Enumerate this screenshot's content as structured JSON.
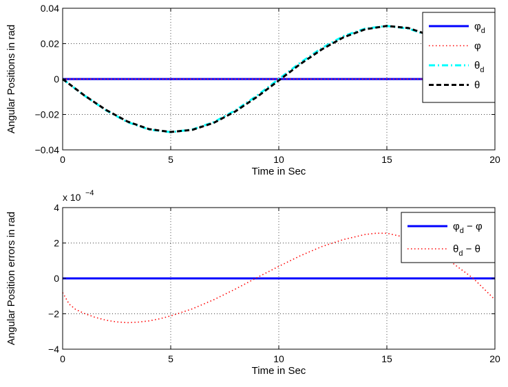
{
  "chart_data": [
    {
      "type": "line",
      "xlabel": "Time in Sec",
      "ylabel": "Angular Positions in rad",
      "xlim": [
        0,
        20
      ],
      "ylim": [
        -0.04,
        0.04
      ],
      "xticks": [
        0,
        5,
        10,
        15,
        20
      ],
      "yticks": [
        -0.04,
        -0.02,
        0,
        0.02,
        0.04
      ],
      "xtick_labels": [
        "0",
        "5",
        "10",
        "15",
        "20"
      ],
      "ytick_labels": [
        "−0.04",
        "−0.02",
        "0",
        "0.02",
        "0.04"
      ],
      "grid": true,
      "legend_position": "top-right",
      "series": [
        {
          "name": "φd",
          "legend_main": "φ",
          "legend_sub": "d",
          "color": "#0000ff",
          "style": "solid",
          "x": [
            0,
            20
          ],
          "y": [
            0,
            0
          ]
        },
        {
          "name": "φ",
          "legend_main": "φ",
          "legend_sub": "",
          "color": "#ff0000",
          "style": "dotted",
          "x": [
            0,
            20
          ],
          "y": [
            0,
            0
          ]
        },
        {
          "name": "θd",
          "legend_main": "θ",
          "legend_sub": "d",
          "color": "#00ffff",
          "style": "dashdot",
          "x": [
            0,
            1,
            2,
            3,
            4,
            5,
            6,
            7,
            8,
            9,
            10,
            11,
            12,
            13,
            14,
            15,
            16,
            17,
            18,
            19,
            20
          ],
          "y": [
            0,
            -0.0093,
            -0.0176,
            -0.0243,
            -0.0285,
            -0.03,
            -0.0285,
            -0.0243,
            -0.0176,
            -0.0093,
            0,
            0.0093,
            0.0176,
            0.0243,
            0.0285,
            0.03,
            0.0285,
            0.0243,
            0.0176,
            0.0093,
            0
          ]
        },
        {
          "name": "θ",
          "legend_main": "θ",
          "legend_sub": "",
          "color": "#000000",
          "style": "dashed",
          "x": [
            0,
            1,
            2,
            3,
            4,
            5,
            6,
            7,
            8,
            9,
            10,
            11,
            12,
            13,
            14,
            15,
            16,
            17,
            18,
            19,
            20
          ],
          "y": [
            0,
            -0.0092,
            -0.0174,
            -0.024,
            -0.0283,
            -0.0299,
            -0.0287,
            -0.0247,
            -0.0182,
            -0.01,
            -0.0008,
            0.0085,
            0.0168,
            0.0236,
            0.0281,
            0.03,
            0.0288,
            0.0247,
            0.0182,
            0.0099,
            0.0008
          ]
        }
      ]
    },
    {
      "type": "line",
      "xlabel": "Time in Sec",
      "ylabel": "Angular Position errors in rad",
      "exponent_label": "x 10",
      "exponent_power": "−4",
      "xlim": [
        0,
        20
      ],
      "ylim": [
        -4,
        4
      ],
      "xticks": [
        0,
        5,
        10,
        15,
        20
      ],
      "yticks": [
        -4,
        -2,
        0,
        2,
        4
      ],
      "xtick_labels": [
        "0",
        "5",
        "10",
        "15",
        "20"
      ],
      "ytick_labels": [
        "−4",
        "−2",
        "0",
        "2",
        "4"
      ],
      "grid": true,
      "legend_position": "top-right",
      "series": [
        {
          "name": "φd − φ",
          "legend_main": "φ",
          "legend_sub": "d",
          "legend_rest": " − φ",
          "color": "#0000ff",
          "style": "solid",
          "x": [
            0,
            20
          ],
          "y": [
            0,
            0
          ]
        },
        {
          "name": "θd − θ",
          "legend_main": "θ",
          "legend_sub": "d",
          "legend_rest": " − θ",
          "color": "#ff0000",
          "style": "dotted",
          "x": [
            0,
            0.3,
            0.6,
            1,
            1.5,
            2,
            2.5,
            3,
            3.5,
            4,
            4.5,
            5,
            6,
            7,
            8,
            9,
            10,
            11,
            12,
            13,
            14,
            14.5,
            15,
            16,
            17,
            18,
            19,
            20
          ],
          "y": [
            -0.8,
            -1.45,
            -1.75,
            -1.98,
            -2.2,
            -2.36,
            -2.46,
            -2.5,
            -2.47,
            -2.4,
            -2.28,
            -2.12,
            -1.72,
            -1.2,
            -0.6,
            0.05,
            0.68,
            1.28,
            1.8,
            2.2,
            2.48,
            2.55,
            2.55,
            2.28,
            1.7,
            0.9,
            0.0,
            -1.2
          ]
        }
      ]
    }
  ]
}
